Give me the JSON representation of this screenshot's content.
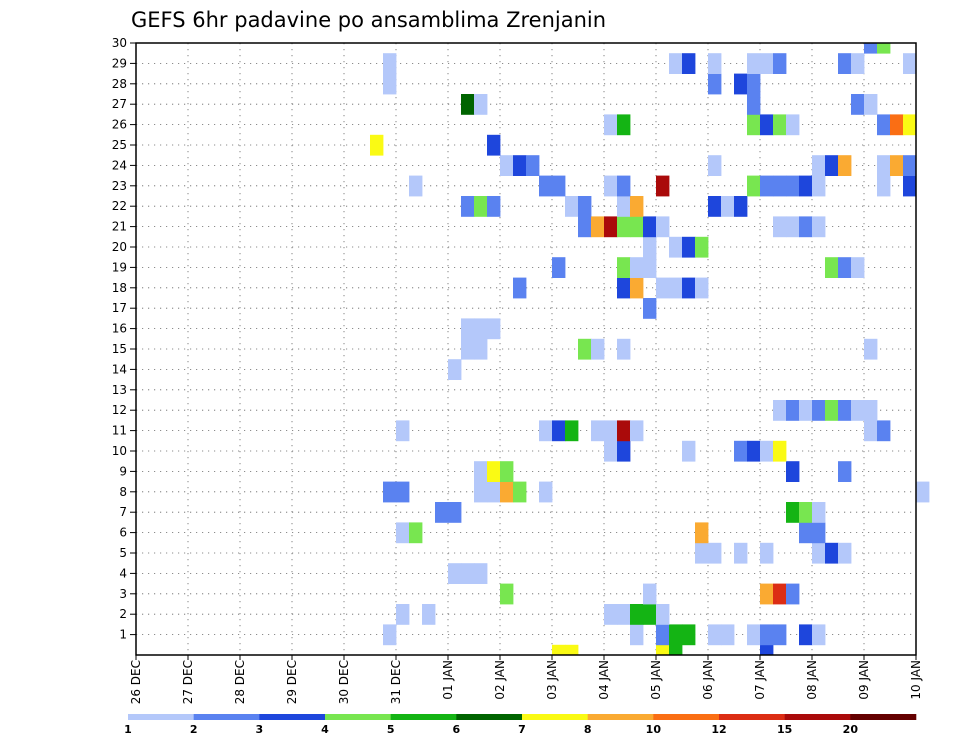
{
  "chart_data": {
    "type": "heatmap",
    "title": "GEFS 6hr padavine po ansamblima Zrenjanin",
    "xlabel": "",
    "ylabel": "",
    "x_ticks": [
      "26 DEC",
      "27 DEC",
      "28 DEC",
      "29 DEC",
      "30 DEC",
      "31 DEC",
      "01 JAN",
      "02 JAN",
      "03 JAN",
      "04 JAN",
      "05 JAN",
      "06 JAN",
      "07 JAN",
      "08 JAN",
      "09 JAN",
      "10 JAN"
    ],
    "y_ticks": [
      "1",
      "2",
      "3",
      "4",
      "5",
      "6",
      "7",
      "8",
      "9",
      "10",
      "11",
      "12",
      "13",
      "14",
      "15",
      "16",
      "17",
      "18",
      "19",
      "20",
      "21",
      "22",
      "23",
      "24",
      "25",
      "26",
      "27",
      "28",
      "29",
      "30"
    ],
    "xlim_steps": [
      0,
      60
    ],
    "ylim": [
      0,
      30
    ],
    "grid": true,
    "legend": {
      "placement": "bottom",
      "levels": [
        "1",
        "2",
        "3",
        "4",
        "5",
        "6",
        "7",
        "8",
        "10",
        "12",
        "15",
        "20"
      ],
      "colors": [
        "#b4c8fa",
        "#5a82f0",
        "#1e46dc",
        "#78e650",
        "#14b414",
        "#006400",
        "#fafa14",
        "#faaa32",
        "#fa6e14",
        "#dc2d14",
        "#aa0a0a",
        "#640000"
      ]
    },
    "cells_format": "[time_step_6h_from_26_DEC_00, member, color_index]",
    "cells": [
      [
        40,
        0,
        6
      ],
      [
        41,
        0,
        4
      ],
      [
        32,
        0,
        6
      ],
      [
        33,
        0,
        6
      ],
      [
        48,
        0,
        2
      ],
      [
        19,
        1,
        0
      ],
      [
        38,
        1,
        0
      ],
      [
        40,
        1,
        1
      ],
      [
        41,
        1,
        4
      ],
      [
        42,
        1,
        4
      ],
      [
        44,
        1,
        0
      ],
      [
        45,
        1,
        0
      ],
      [
        47,
        1,
        0
      ],
      [
        48,
        1,
        1
      ],
      [
        49,
        1,
        1
      ],
      [
        51,
        1,
        2
      ],
      [
        52,
        1,
        0
      ],
      [
        20,
        2,
        0
      ],
      [
        22,
        2,
        0
      ],
      [
        36,
        2,
        0
      ],
      [
        37,
        2,
        0
      ],
      [
        38,
        2,
        4
      ],
      [
        39,
        2,
        4
      ],
      [
        40,
        2,
        0
      ],
      [
        28,
        3,
        3
      ],
      [
        39,
        3,
        0
      ],
      [
        48,
        3,
        7
      ],
      [
        49,
        3,
        9
      ],
      [
        50,
        3,
        1
      ],
      [
        24,
        4,
        0
      ],
      [
        25,
        4,
        0
      ],
      [
        26,
        4,
        0
      ],
      [
        43,
        5,
        0
      ],
      [
        44,
        5,
        0
      ],
      [
        46,
        5,
        0
      ],
      [
        48,
        5,
        0
      ],
      [
        52,
        5,
        0
      ],
      [
        53,
        5,
        2
      ],
      [
        54,
        5,
        0
      ],
      [
        20,
        6,
        0
      ],
      [
        21,
        6,
        3
      ],
      [
        43,
        6,
        7
      ],
      [
        51,
        6,
        1
      ],
      [
        52,
        6,
        1
      ],
      [
        23,
        7,
        1
      ],
      [
        24,
        7,
        1
      ],
      [
        50,
        7,
        4
      ],
      [
        51,
        7,
        3
      ],
      [
        52,
        7,
        0
      ],
      [
        19,
        8,
        1
      ],
      [
        20,
        8,
        1
      ],
      [
        26,
        8,
        0
      ],
      [
        27,
        8,
        0
      ],
      [
        28,
        8,
        7
      ],
      [
        29,
        8,
        3
      ],
      [
        31,
        8,
        0
      ],
      [
        60,
        8,
        0
      ],
      [
        26,
        9,
        0
      ],
      [
        27,
        9,
        6
      ],
      [
        28,
        9,
        3
      ],
      [
        50,
        9,
        2
      ],
      [
        54,
        9,
        1
      ],
      [
        36,
        10,
        0
      ],
      [
        37,
        10,
        2
      ],
      [
        42,
        10,
        0
      ],
      [
        46,
        10,
        1
      ],
      [
        47,
        10,
        2
      ],
      [
        48,
        10,
        0
      ],
      [
        49,
        10,
        6
      ],
      [
        20,
        11,
        0
      ],
      [
        31,
        11,
        0
      ],
      [
        32,
        11,
        2
      ],
      [
        33,
        11,
        4
      ],
      [
        35,
        11,
        0
      ],
      [
        36,
        11,
        0
      ],
      [
        37,
        11,
        10
      ],
      [
        38,
        11,
        0
      ],
      [
        56,
        11,
        0
      ],
      [
        57,
        11,
        1
      ],
      [
        49,
        12,
        0
      ],
      [
        50,
        12,
        1
      ],
      [
        51,
        12,
        0
      ],
      [
        52,
        12,
        1
      ],
      [
        53,
        12,
        3
      ],
      [
        54,
        12,
        1
      ],
      [
        55,
        12,
        0
      ],
      [
        56,
        12,
        0
      ],
      [
        24,
        14,
        0
      ],
      [
        25,
        15,
        0
      ],
      [
        26,
        15,
        0
      ],
      [
        34,
        15,
        3
      ],
      [
        35,
        15,
        0
      ],
      [
        37,
        15,
        0
      ],
      [
        56,
        15,
        0
      ],
      [
        25,
        16,
        0
      ],
      [
        26,
        16,
        0
      ],
      [
        27,
        16,
        0
      ],
      [
        39,
        17,
        1
      ],
      [
        29,
        18,
        1
      ],
      [
        37,
        18,
        2
      ],
      [
        38,
        18,
        7
      ],
      [
        40,
        18,
        0
      ],
      [
        41,
        18,
        0
      ],
      [
        42,
        18,
        2
      ],
      [
        43,
        18,
        0
      ],
      [
        32,
        19,
        1
      ],
      [
        37,
        19,
        3
      ],
      [
        38,
        19,
        0
      ],
      [
        39,
        19,
        0
      ],
      [
        53,
        19,
        3
      ],
      [
        54,
        19,
        1
      ],
      [
        55,
        19,
        0
      ],
      [
        39,
        20,
        0
      ],
      [
        41,
        20,
        0
      ],
      [
        42,
        20,
        2
      ],
      [
        43,
        20,
        3
      ],
      [
        34,
        21,
        1
      ],
      [
        35,
        21,
        7
      ],
      [
        36,
        21,
        10
      ],
      [
        37,
        21,
        3
      ],
      [
        38,
        21,
        3
      ],
      [
        39,
        21,
        2
      ],
      [
        40,
        21,
        0
      ],
      [
        49,
        21,
        0
      ],
      [
        50,
        21,
        0
      ],
      [
        51,
        21,
        1
      ],
      [
        52,
        21,
        0
      ],
      [
        25,
        22,
        1
      ],
      [
        26,
        22,
        3
      ],
      [
        27,
        22,
        1
      ],
      [
        33,
        22,
        0
      ],
      [
        34,
        22,
        1
      ],
      [
        37,
        22,
        0
      ],
      [
        38,
        22,
        7
      ],
      [
        44,
        22,
        2
      ],
      [
        45,
        22,
        0
      ],
      [
        46,
        22,
        2
      ],
      [
        21,
        23,
        0
      ],
      [
        31,
        23,
        1
      ],
      [
        32,
        23,
        1
      ],
      [
        36,
        23,
        0
      ],
      [
        37,
        23,
        1
      ],
      [
        40,
        23,
        10
      ],
      [
        47,
        23,
        3
      ],
      [
        48,
        23,
        1
      ],
      [
        49,
        23,
        1
      ],
      [
        50,
        23,
        1
      ],
      [
        51,
        23,
        2
      ],
      [
        52,
        23,
        0
      ],
      [
        57,
        23,
        0
      ],
      [
        59,
        23,
        2
      ],
      [
        28,
        24,
        0
      ],
      [
        29,
        24,
        2
      ],
      [
        30,
        24,
        1
      ],
      [
        44,
        24,
        0
      ],
      [
        52,
        24,
        0
      ],
      [
        53,
        24,
        2
      ],
      [
        54,
        24,
        7
      ],
      [
        57,
        24,
        0
      ],
      [
        58,
        24,
        7
      ],
      [
        59,
        24,
        1
      ],
      [
        18,
        25,
        6
      ],
      [
        27,
        25,
        2
      ],
      [
        36,
        26,
        0
      ],
      [
        37,
        26,
        4
      ],
      [
        47,
        26,
        3
      ],
      [
        48,
        26,
        2
      ],
      [
        49,
        26,
        3
      ],
      [
        50,
        26,
        0
      ],
      [
        57,
        26,
        1
      ],
      [
        58,
        26,
        8
      ],
      [
        59,
        26,
        6
      ],
      [
        25,
        27,
        5
      ],
      [
        26,
        27,
        0
      ],
      [
        47,
        27,
        1
      ],
      [
        55,
        27,
        1
      ],
      [
        56,
        27,
        0
      ],
      [
        19,
        28,
        0
      ],
      [
        44,
        28,
        1
      ],
      [
        46,
        28,
        2
      ],
      [
        47,
        28,
        1
      ],
      [
        19,
        29,
        0
      ],
      [
        41,
        29,
        0
      ],
      [
        42,
        29,
        2
      ],
      [
        44,
        29,
        0
      ],
      [
        47,
        29,
        0
      ],
      [
        48,
        29,
        0
      ],
      [
        49,
        29,
        1
      ],
      [
        54,
        29,
        1
      ],
      [
        55,
        29,
        0
      ],
      [
        59,
        29,
        0
      ],
      [
        56,
        30,
        1
      ],
      [
        57,
        30,
        3
      ]
    ]
  }
}
